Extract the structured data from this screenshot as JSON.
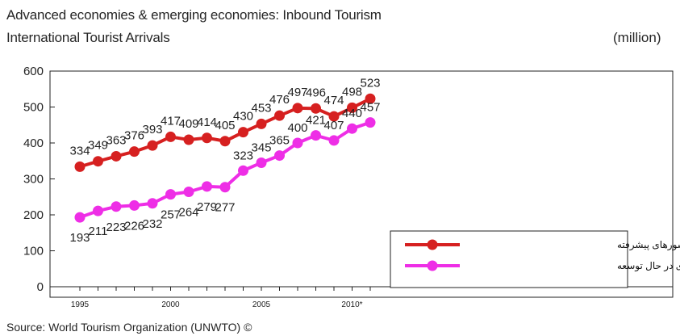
{
  "chart_data": {
    "type": "line",
    "title": "Advanced economies & emerging economies: Inbound Tourism",
    "subtitle": "International Tourist Arrivals",
    "unit": "(million)",
    "source": "Source: World Tourism Organization (UNWTO) ©",
    "x": [
      1995,
      1996,
      1997,
      1998,
      1999,
      2000,
      2001,
      2002,
      2003,
      2004,
      2005,
      2006,
      2007,
      2008,
      2009,
      2010,
      2011
    ],
    "x_tick_labels": [
      {
        "x": 1995,
        "label": "1995"
      },
      {
        "x": 2000,
        "label": "2000"
      },
      {
        "x": 2005,
        "label": "2005"
      },
      {
        "x": 2010,
        "label": "2010*"
      }
    ],
    "ylim": [
      0,
      600
    ],
    "y_ticks": [
      0,
      100,
      200,
      300,
      400,
      500,
      600
    ],
    "grid": false,
    "legend_position": "bottom-right",
    "series": [
      {
        "name": "کشورهای پیشرفته",
        "color": "#d62020",
        "values": [
          334,
          349,
          363,
          376,
          393,
          417,
          409,
          414,
          405,
          430,
          453,
          476,
          497,
          496,
          474,
          498,
          523
        ]
      },
      {
        "name": "کشورهای در حال توسعه",
        "color": "#ee2ee6",
        "values": [
          193,
          211,
          223,
          226,
          232,
          257,
          264,
          279,
          277,
          323,
          345,
          365,
          400,
          421,
          407,
          440,
          457
        ]
      }
    ]
  }
}
